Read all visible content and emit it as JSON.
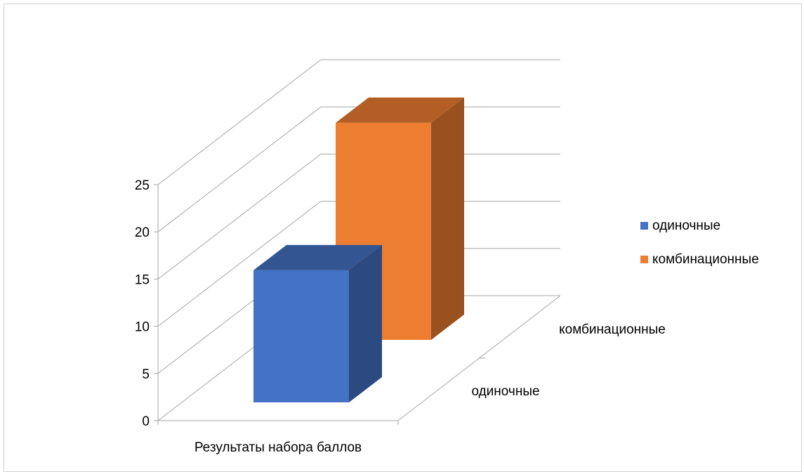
{
  "chart_data": {
    "type": "bar",
    "style": "3d-column",
    "title": "",
    "categories": [
      "Результаты набора баллов"
    ],
    "depth_categories": [
      "одиночные",
      "комбинационные"
    ],
    "series": [
      {
        "name": "одиночные",
        "values": [
          14
        ],
        "color": "#4472C4"
      },
      {
        "name": "комбинационные",
        "values": [
          23
        ],
        "color": "#ED7D31"
      }
    ],
    "y_ticks": [
      0,
      5,
      10,
      15,
      20,
      25
    ],
    "ylim": [
      0,
      25
    ],
    "grid": true,
    "legend_position": "right",
    "xlabel": "",
    "ylabel": ""
  }
}
